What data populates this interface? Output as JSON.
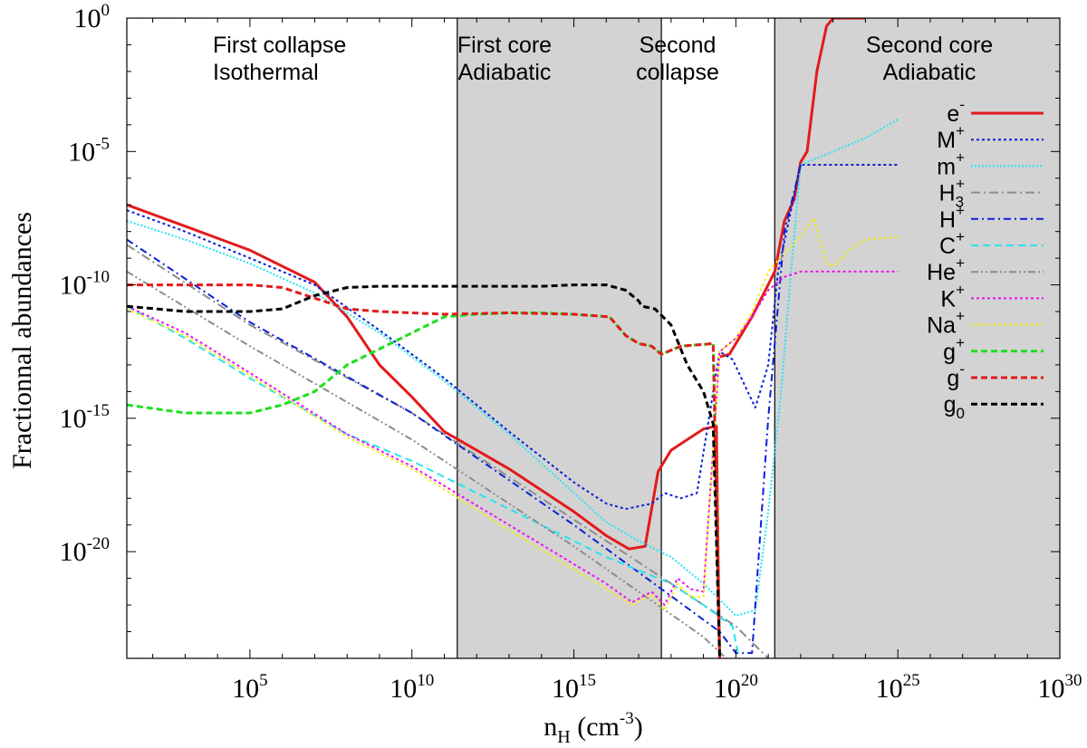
{
  "chart_data": {
    "type": "line",
    "xlabel": "n",
    "xlabel_sub": "H",
    "xlabel_unit_pre": " (cm",
    "xlabel_unit_sup": "-3",
    "xlabel_unit_post": ")",
    "ylabel": "Fractionnal abundances",
    "x_scale": "log",
    "y_scale": "log",
    "xlim_log10": [
      1.2,
      30
    ],
    "ylim_log10": [
      -24,
      0
    ],
    "x_ticks": [
      {
        "base": "10",
        "exp": "5",
        "log10": 5
      },
      {
        "base": "10",
        "exp": "10",
        "log10": 10
      },
      {
        "base": "10",
        "exp": "15",
        "log10": 15
      },
      {
        "base": "10",
        "exp": "20",
        "log10": 20
      },
      {
        "base": "10",
        "exp": "25",
        "log10": 25
      },
      {
        "base": "10",
        "exp": "30",
        "log10": 30
      }
    ],
    "y_ticks": [
      {
        "base": "10",
        "exp": "0",
        "log10": 0
      },
      {
        "base": "10",
        "exp": "-5",
        "log10": -5
      },
      {
        "base": "10",
        "exp": "-10",
        "log10": -10
      },
      {
        "base": "10",
        "exp": "-15",
        "log10": -15
      },
      {
        "base": "10",
        "exp": "-20",
        "log10": -20
      }
    ],
    "grid": false,
    "legend_position": "right",
    "regions": [
      {
        "lines": [
          "First collapse",
          "Isothermal"
        ],
        "from_log10": 1.2,
        "to_log10": 11.4,
        "shaded": false
      },
      {
        "lines": [
          "First core",
          "Adiabatic"
        ],
        "from_log10": 11.4,
        "to_log10": 17.7,
        "shaded": true
      },
      {
        "lines": [
          "Second",
          "collapse"
        ],
        "from_log10": 17.7,
        "to_log10": 21.2,
        "shaded": false
      },
      {
        "lines": [
          "Second core",
          "Adiabatic"
        ],
        "from_log10": 21.2,
        "to_log10": 30,
        "shaded": true
      }
    ],
    "series": [
      {
        "label_base": "e",
        "label_sup": "-",
        "label_sub": "",
        "color": "#e31a1c",
        "dash": "",
        "width": 3,
        "points": [
          [
            1.2,
            -7.0
          ],
          [
            3,
            -7.8
          ],
          [
            5,
            -8.7
          ],
          [
            7,
            -9.9
          ],
          [
            8,
            -11.2
          ],
          [
            9,
            -13.0
          ],
          [
            10,
            -14.2
          ],
          [
            11,
            -15.5
          ],
          [
            12,
            -16.2
          ],
          [
            13,
            -16.9
          ],
          [
            14,
            -17.7
          ],
          [
            15,
            -18.5
          ],
          [
            16,
            -19.4
          ],
          [
            16.7,
            -19.9
          ],
          [
            17.2,
            -19.8
          ],
          [
            17.6,
            -17.0
          ],
          [
            18,
            -16.2
          ],
          [
            19,
            -15.4
          ],
          [
            19.4,
            -15.3
          ],
          [
            19.45,
            -20
          ],
          [
            19.5,
            -24
          ]
        ]
      },
      {
        "label_base": "e",
        "label_sup": "-",
        "label_sub": "",
        "color": "#e31a1c",
        "dash": "",
        "width": 3,
        "points": [
          [
            19.5,
            -12.7
          ],
          [
            19.8,
            -12.6
          ],
          [
            20.5,
            -11.2
          ],
          [
            21.2,
            -9.5
          ],
          [
            21.5,
            -7.6
          ],
          [
            21.8,
            -6.8
          ],
          [
            22,
            -5.4
          ],
          [
            22.2,
            -5.0
          ],
          [
            22.5,
            -2.0
          ],
          [
            22.8,
            -0.3
          ],
          [
            23,
            0
          ],
          [
            24,
            0
          ]
        ]
      },
      {
        "label_base": "M",
        "label_sup": "+",
        "label_sub": "",
        "color": "#0b1fd6",
        "dash": "3,3",
        "width": 2,
        "points": [
          [
            1.2,
            -7.2
          ],
          [
            3,
            -8.0
          ],
          [
            5,
            -9.0
          ],
          [
            7,
            -10.0
          ],
          [
            9,
            -11.7
          ],
          [
            11,
            -13.5
          ],
          [
            13,
            -15.5
          ],
          [
            15,
            -17.4
          ],
          [
            16,
            -18.2
          ],
          [
            16.6,
            -18.4
          ],
          [
            17.4,
            -18.2
          ],
          [
            17.8,
            -17.8
          ],
          [
            18.3,
            -18.0
          ],
          [
            18.8,
            -17.8
          ],
          [
            19.5,
            -12.5
          ],
          [
            19.9,
            -12.8
          ],
          [
            20.6,
            -14.6
          ],
          [
            21,
            -13.0
          ],
          [
            21.3,
            -9.5
          ],
          [
            22,
            -5.5
          ],
          [
            25,
            -5.5
          ]
        ]
      },
      {
        "label_base": "m",
        "label_sup": "+",
        "label_sub": "",
        "color": "#27e3f0",
        "dash": "2,2",
        "width": 2,
        "points": [
          [
            1.2,
            -7.6
          ],
          [
            3,
            -8.3
          ],
          [
            5,
            -9.2
          ],
          [
            7,
            -10.3
          ],
          [
            9,
            -11.8
          ],
          [
            11,
            -13.6
          ],
          [
            13,
            -15.6
          ],
          [
            15,
            -17.8
          ],
          [
            16,
            -18.9
          ],
          [
            17,
            -19.6
          ],
          [
            18,
            -20.2
          ],
          [
            19,
            -21.2
          ],
          [
            20,
            -22.4
          ],
          [
            20.6,
            -22.2
          ],
          [
            21,
            -18.5
          ],
          [
            21.4,
            -14
          ],
          [
            21.7,
            -9.5
          ],
          [
            22,
            -5.5
          ],
          [
            23,
            -5.0
          ],
          [
            24,
            -4.5
          ],
          [
            25,
            -3.8
          ]
        ]
      },
      {
        "label_base": "H",
        "label_sup": "+",
        "label_sub": "3",
        "color": "#8c8c8c",
        "dash": "10,4,2,4",
        "width": 2,
        "points": [
          [
            1.2,
            -8.5
          ],
          [
            5,
            -11.5
          ],
          [
            10,
            -14.8
          ],
          [
            15,
            -18.8
          ],
          [
            20,
            -22.8
          ],
          [
            21,
            -24
          ]
        ]
      },
      {
        "label_base": "H",
        "label_sup": "+",
        "label_sub": "",
        "color": "#0b1fd6",
        "dash": "8,4,2,4",
        "width": 2,
        "points": [
          [
            1.2,
            -8.3
          ],
          [
            5,
            -11.4
          ],
          [
            10,
            -14.8
          ],
          [
            15,
            -19.0
          ],
          [
            19.5,
            -23.0
          ],
          [
            20,
            -23.8
          ],
          [
            20.5,
            -23.8
          ],
          [
            21,
            -15
          ],
          [
            21.5,
            -8
          ],
          [
            22,
            -5.5
          ]
        ]
      },
      {
        "label_base": "C",
        "label_sup": "+",
        "label_sub": "",
        "color": "#27e3f0",
        "dash": "8,5",
        "width": 2,
        "points": [
          [
            1.2,
            -10.8
          ],
          [
            3,
            -12.0
          ],
          [
            5,
            -13.5
          ],
          [
            8,
            -15.6
          ],
          [
            10,
            -16.6
          ],
          [
            13,
            -18.4
          ],
          [
            16,
            -20.2
          ],
          [
            17,
            -20.7
          ],
          [
            18,
            -21.2
          ],
          [
            19,
            -22.0
          ],
          [
            19.9,
            -22.8
          ],
          [
            20.1,
            -24
          ]
        ]
      },
      {
        "label_base": "He",
        "label_sup": "+",
        "label_sub": "",
        "color": "#8c8c8c",
        "dash": "8,3,2,3,2,3",
        "width": 2,
        "points": [
          [
            1.2,
            -9.5
          ],
          [
            5,
            -12.3
          ],
          [
            10,
            -15.8
          ],
          [
            15,
            -19.8
          ],
          [
            17,
            -21.5
          ],
          [
            19,
            -23.2
          ],
          [
            19.7,
            -24
          ]
        ]
      },
      {
        "label_base": "K",
        "label_sup": "+",
        "label_sub": "",
        "color": "#f00cf0",
        "dash": "3,3",
        "width": 2,
        "points": [
          [
            1.2,
            -10.8
          ],
          [
            3,
            -11.8
          ],
          [
            5,
            -13.3
          ],
          [
            8,
            -15.6
          ],
          [
            10,
            -16.8
          ],
          [
            13,
            -19.0
          ],
          [
            16,
            -21.2
          ],
          [
            16.8,
            -21.9
          ],
          [
            17.4,
            -21.5
          ],
          [
            17.8,
            -22.0
          ],
          [
            18.2,
            -21.0
          ],
          [
            18.6,
            -21.4
          ],
          [
            19,
            -21.5
          ],
          [
            19.5,
            -12.5
          ],
          [
            20,
            -12.0
          ],
          [
            20.5,
            -11.2
          ],
          [
            21,
            -10.2
          ],
          [
            21.5,
            -9.7
          ],
          [
            22,
            -9.5
          ],
          [
            25,
            -9.5
          ]
        ]
      },
      {
        "label_base": "Na",
        "label_sup": "+",
        "label_sub": "",
        "color": "#f5ee1c",
        "dash": "3,3",
        "width": 2,
        "points": [
          [
            1.2,
            -10.9
          ],
          [
            3,
            -11.9
          ],
          [
            5,
            -13.4
          ],
          [
            8,
            -15.7
          ],
          [
            10,
            -16.9
          ],
          [
            13,
            -19.2
          ],
          [
            16,
            -21.4
          ],
          [
            16.8,
            -22.0
          ],
          [
            17.4,
            -21.6
          ],
          [
            17.8,
            -22.2
          ],
          [
            18.2,
            -21.2
          ],
          [
            18.6,
            -21.7
          ],
          [
            19,
            -21.7
          ],
          [
            19.5,
            -12.5
          ],
          [
            20,
            -12.0
          ],
          [
            20.5,
            -11.0
          ],
          [
            21,
            -9.5
          ],
          [
            21.5,
            -8.8
          ],
          [
            22,
            -8.2
          ],
          [
            22.4,
            -7.5
          ],
          [
            22.8,
            -9.2
          ],
          [
            23,
            -9.3
          ],
          [
            23.6,
            -8.6
          ],
          [
            24,
            -8.3
          ],
          [
            25,
            -8.2
          ]
        ]
      },
      {
        "label_base": "g",
        "label_sup": "+",
        "label_sub": "",
        "color": "#1ce01c",
        "dash": "7,4",
        "width": 3,
        "points": [
          [
            1.2,
            -14.5
          ],
          [
            3,
            -14.8
          ],
          [
            5,
            -14.8
          ],
          [
            6,
            -14.5
          ],
          [
            7,
            -14.0
          ],
          [
            8,
            -13.0
          ],
          [
            9,
            -12.4
          ],
          [
            10,
            -11.8
          ],
          [
            11,
            -11.2
          ],
          [
            12,
            -11.1
          ],
          [
            13,
            -11.05
          ],
          [
            14,
            -11.05
          ],
          [
            15,
            -11.1
          ],
          [
            16.1,
            -11.2
          ],
          [
            16.6,
            -11.9
          ],
          [
            17,
            -12.2
          ],
          [
            17.4,
            -12.3
          ],
          [
            17.7,
            -12.6
          ],
          [
            18.3,
            -12.3
          ],
          [
            19.3,
            -12.2
          ],
          [
            19.5,
            -24
          ]
        ]
      },
      {
        "label_base": "g",
        "label_sup": "-",
        "label_sub": "",
        "color": "#e31a1c",
        "dash": "7,4",
        "width": 3,
        "points": [
          [
            1.2,
            -10.0
          ],
          [
            3,
            -10.0
          ],
          [
            5,
            -10.0
          ],
          [
            6,
            -10.1
          ],
          [
            7,
            -10.5
          ],
          [
            8,
            -10.9
          ],
          [
            9,
            -11.0
          ],
          [
            11,
            -11.1
          ],
          [
            13,
            -11.05
          ],
          [
            15,
            -11.1
          ],
          [
            16.1,
            -11.2
          ],
          [
            16.6,
            -11.9
          ],
          [
            17,
            -12.2
          ],
          [
            17.4,
            -12.3
          ],
          [
            17.7,
            -12.6
          ],
          [
            18.3,
            -12.3
          ],
          [
            19.3,
            -12.2
          ],
          [
            19.5,
            -24
          ]
        ]
      },
      {
        "label_base": "g",
        "label_sup": "",
        "label_sub": "0",
        "color": "#000000",
        "dash": "7,4",
        "width": 3,
        "points": [
          [
            1.2,
            -10.8
          ],
          [
            3,
            -11.0
          ],
          [
            5,
            -11.0
          ],
          [
            6,
            -10.9
          ],
          [
            7,
            -10.4
          ],
          [
            8,
            -10.1
          ],
          [
            9,
            -10.05
          ],
          [
            10,
            -10.05
          ],
          [
            12,
            -10.05
          ],
          [
            14,
            -10.05
          ],
          [
            15,
            -10.0
          ],
          [
            16,
            -10.0
          ],
          [
            16.6,
            -10.2
          ],
          [
            17.0,
            -10.6
          ],
          [
            17.1,
            -10.8
          ],
          [
            17.5,
            -10.9
          ],
          [
            18,
            -11.5
          ],
          [
            18.5,
            -13.0
          ],
          [
            19,
            -14.0
          ],
          [
            19.3,
            -15.2
          ],
          [
            19.5,
            -24
          ]
        ]
      }
    ]
  }
}
